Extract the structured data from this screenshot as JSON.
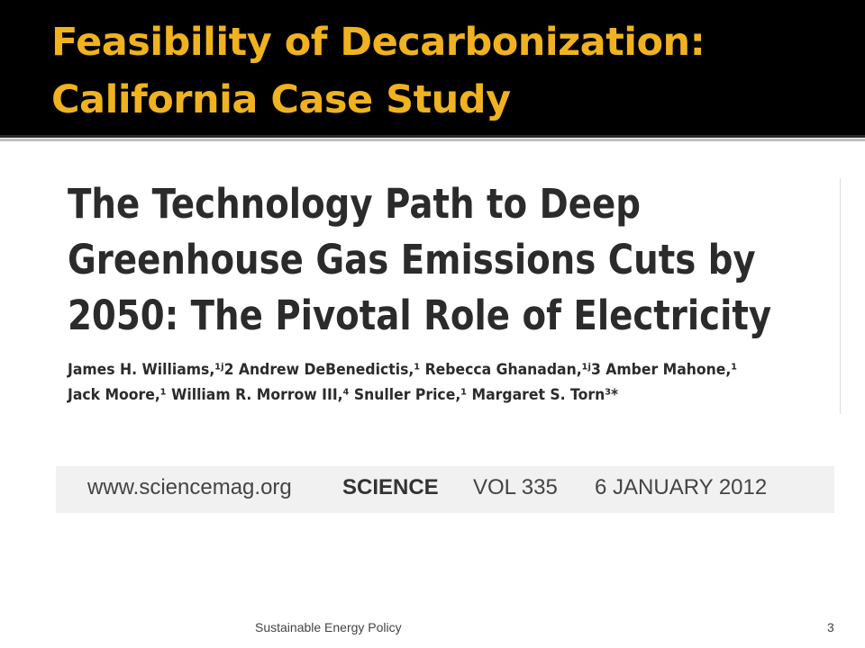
{
  "slide": {
    "title_line1": "Feasibility of Decarbonization:",
    "title_line2": "California Case Study"
  },
  "paper": {
    "title_line1": "The Technology Path to Deep",
    "title_line2": "Greenhouse Gas Emissions Cuts by",
    "title_line3": "2050: The Pivotal Role of Electricity",
    "authors_line1": "James H. Williams,¹ʲ2 Andrew DeBenedictis,¹ Rebecca Ghanadan,¹ʲ3 Amber Mahone,¹",
    "authors_line2": "Jack Moore,¹ William R. Morrow III,⁴ Snuller Price,¹ Margaret S. Torn³*"
  },
  "citation": {
    "url": "www.sciencemag.org",
    "journal": "SCIENCE",
    "volume": "VOL 335",
    "date": "6 JANUARY 2012"
  },
  "footer": {
    "text": "Sustainable Energy Policy",
    "page_number": "3"
  },
  "colors": {
    "title_text": "#f0b21f",
    "title_bar": "#000000",
    "background": "#ffffff"
  }
}
